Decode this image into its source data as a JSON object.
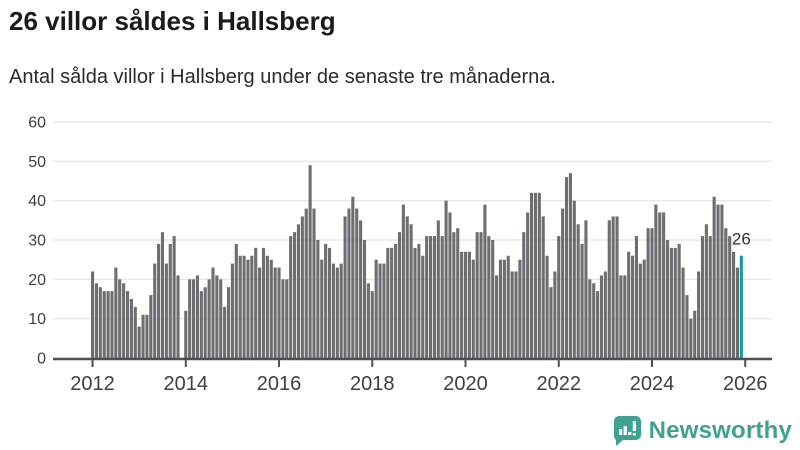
{
  "header": {
    "title": "26 villor såldes i Hallsberg",
    "subtitle": "Antal sålda villor i Hallsberg under de senaste tre månaderna."
  },
  "chart_data": {
    "type": "bar",
    "title": "26 villor såldes i Hallsberg",
    "xlabel": "",
    "ylabel": "",
    "frequency": "monthly",
    "x_start": "2012-01",
    "x_end": "2025-12",
    "values": [
      22,
      19,
      18,
      17,
      17,
      17,
      23,
      20,
      19,
      17,
      15,
      13,
      8,
      11,
      11,
      16,
      24,
      29,
      32,
      24,
      29,
      31,
      21,
      0,
      12,
      20,
      20,
      21,
      17,
      18,
      20,
      23,
      21,
      20,
      13,
      18,
      24,
      29,
      26,
      26,
      25,
      26,
      28,
      23,
      28,
      26,
      25,
      23,
      23,
      20,
      20,
      31,
      32,
      34,
      36,
      38,
      49,
      38,
      30,
      25,
      29,
      28,
      24,
      23,
      24,
      36,
      38,
      41,
      38,
      35,
      30,
      19,
      17,
      25,
      24,
      24,
      28,
      28,
      29,
      32,
      39,
      36,
      34,
      28,
      29,
      26,
      31,
      31,
      31,
      35,
      31,
      40,
      37,
      32,
      33,
      27,
      27,
      27,
      25,
      32,
      32,
      39,
      31,
      30,
      21,
      25,
      25,
      26,
      22,
      22,
      25,
      32,
      37,
      42,
      42,
      42,
      36,
      26,
      18,
      22,
      31,
      38,
      46,
      47,
      40,
      34,
      29,
      35,
      20,
      19,
      17,
      21,
      22,
      35,
      36,
      36,
      21,
      21,
      27,
      26,
      31,
      24,
      25,
      33,
      33,
      39,
      37,
      37,
      30,
      28,
      28,
      29,
      23,
      16,
      10,
      12,
      22,
      31,
      34,
      31,
      41,
      39,
      39,
      33,
      31,
      27,
      23,
      26
    ],
    "highlight_index": 167,
    "highlight_value": 26,
    "annotation": "26",
    "y_ticks": [
      0,
      10,
      20,
      30,
      40,
      50,
      60
    ],
    "ylim": [
      0,
      62
    ],
    "x_tick_labels": [
      "2012",
      "2014",
      "2016",
      "2018",
      "2020",
      "2022",
      "2024",
      "2026"
    ],
    "grid": "horizontal",
    "legend": "none",
    "colors": {
      "bar": "#6d6e71",
      "highlight": "#179a9c",
      "grid": "#e7e7e7",
      "axis": "#4f4f52",
      "tick_label": "#3f3f3f",
      "annotation": "#333333"
    }
  },
  "footer": {
    "brand": "Newsworthy",
    "logo_color": "#41a191"
  }
}
